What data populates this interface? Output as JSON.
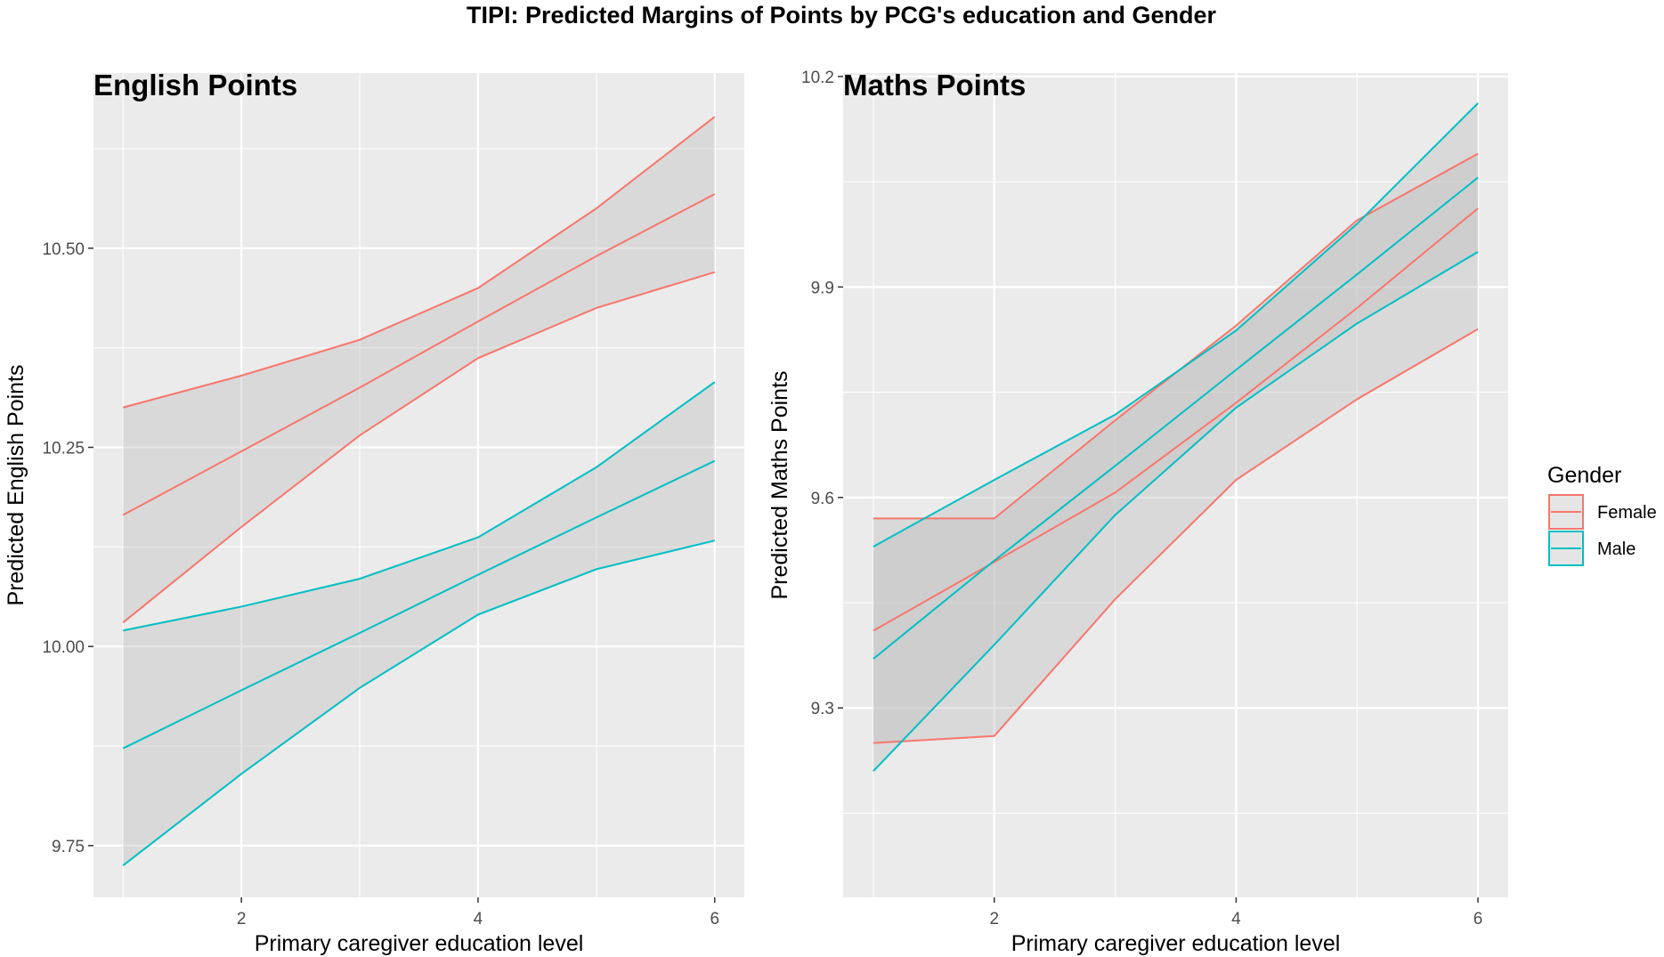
{
  "figure_title": "TIPI: Predicted Margins of Points by PCG's education and Gender",
  "legend": {
    "title": "Gender",
    "items": [
      {
        "label": "Female",
        "color": "#F8766D"
      },
      {
        "label": "Male",
        "color": "#00BFC4"
      }
    ]
  },
  "colors": {
    "panel_bg": "#EBEBEB",
    "ribbon": "#BEBEBE",
    "grid": "#FFFFFF",
    "female": "#F8766D",
    "male": "#00BFC4"
  },
  "chart_data": [
    {
      "type": "line",
      "title": "English Points",
      "xlabel": "Primary caregiver education level",
      "ylabel": "Predicted English Points",
      "xlim": [
        0.75,
        6.25
      ],
      "ylim": [
        9.685,
        10.72
      ],
      "xticks": [
        2,
        4,
        6
      ],
      "yticks": [
        9.75,
        10.0,
        10.25,
        10.5
      ],
      "ytick_labels": [
        "9.75",
        "10.00",
        "10.25",
        "10.50"
      ],
      "grid": true,
      "legend_position": "right",
      "x": [
        1,
        2,
        3,
        4,
        5,
        6
      ],
      "series": [
        {
          "name": "Female",
          "values": [
            10.165,
            10.245,
            10.325,
            10.408,
            10.49,
            10.568
          ],
          "lower": [
            10.03,
            10.15,
            10.265,
            10.362,
            10.425,
            10.47
          ],
          "upper": [
            10.3,
            10.34,
            10.385,
            10.45,
            10.55,
            10.665
          ]
        },
        {
          "name": "Male",
          "values": [
            9.872,
            9.945,
            10.017,
            10.09,
            10.162,
            10.233
          ],
          "lower": [
            9.725,
            9.84,
            9.948,
            10.04,
            10.097,
            10.133
          ],
          "upper": [
            10.02,
            10.05,
            10.085,
            10.137,
            10.225,
            10.332
          ]
        }
      ]
    },
    {
      "type": "line",
      "title": "Maths Points",
      "xlabel": "Primary caregiver education level",
      "ylabel": "Predicted Maths Points",
      "xlim": [
        0.75,
        6.25
      ],
      "ylim": [
        9.03,
        10.205
      ],
      "xticks": [
        2,
        4,
        6
      ],
      "yticks": [
        9.3,
        9.6,
        9.9,
        10.2
      ],
      "ytick_labels": [
        "9.3",
        "9.6",
        "9.9",
        "10.2"
      ],
      "grid": true,
      "legend_position": "right",
      "x": [
        1,
        2,
        3,
        4,
        5,
        6
      ],
      "series": [
        {
          "name": "Female",
          "values": [
            9.41,
            9.508,
            9.607,
            9.735,
            9.87,
            10.012
          ],
          "lower": [
            9.25,
            9.26,
            9.455,
            9.625,
            9.74,
            9.84
          ],
          "upper": [
            9.57,
            9.57,
            9.71,
            9.845,
            9.995,
            10.09
          ]
        },
        {
          "name": "Male",
          "values": [
            9.37,
            9.51,
            9.645,
            9.782,
            9.918,
            10.056
          ],
          "lower": [
            9.21,
            9.39,
            9.575,
            9.728,
            9.848,
            9.95
          ],
          "upper": [
            9.53,
            9.625,
            9.718,
            9.838,
            9.99,
            10.162
          ]
        }
      ]
    }
  ]
}
